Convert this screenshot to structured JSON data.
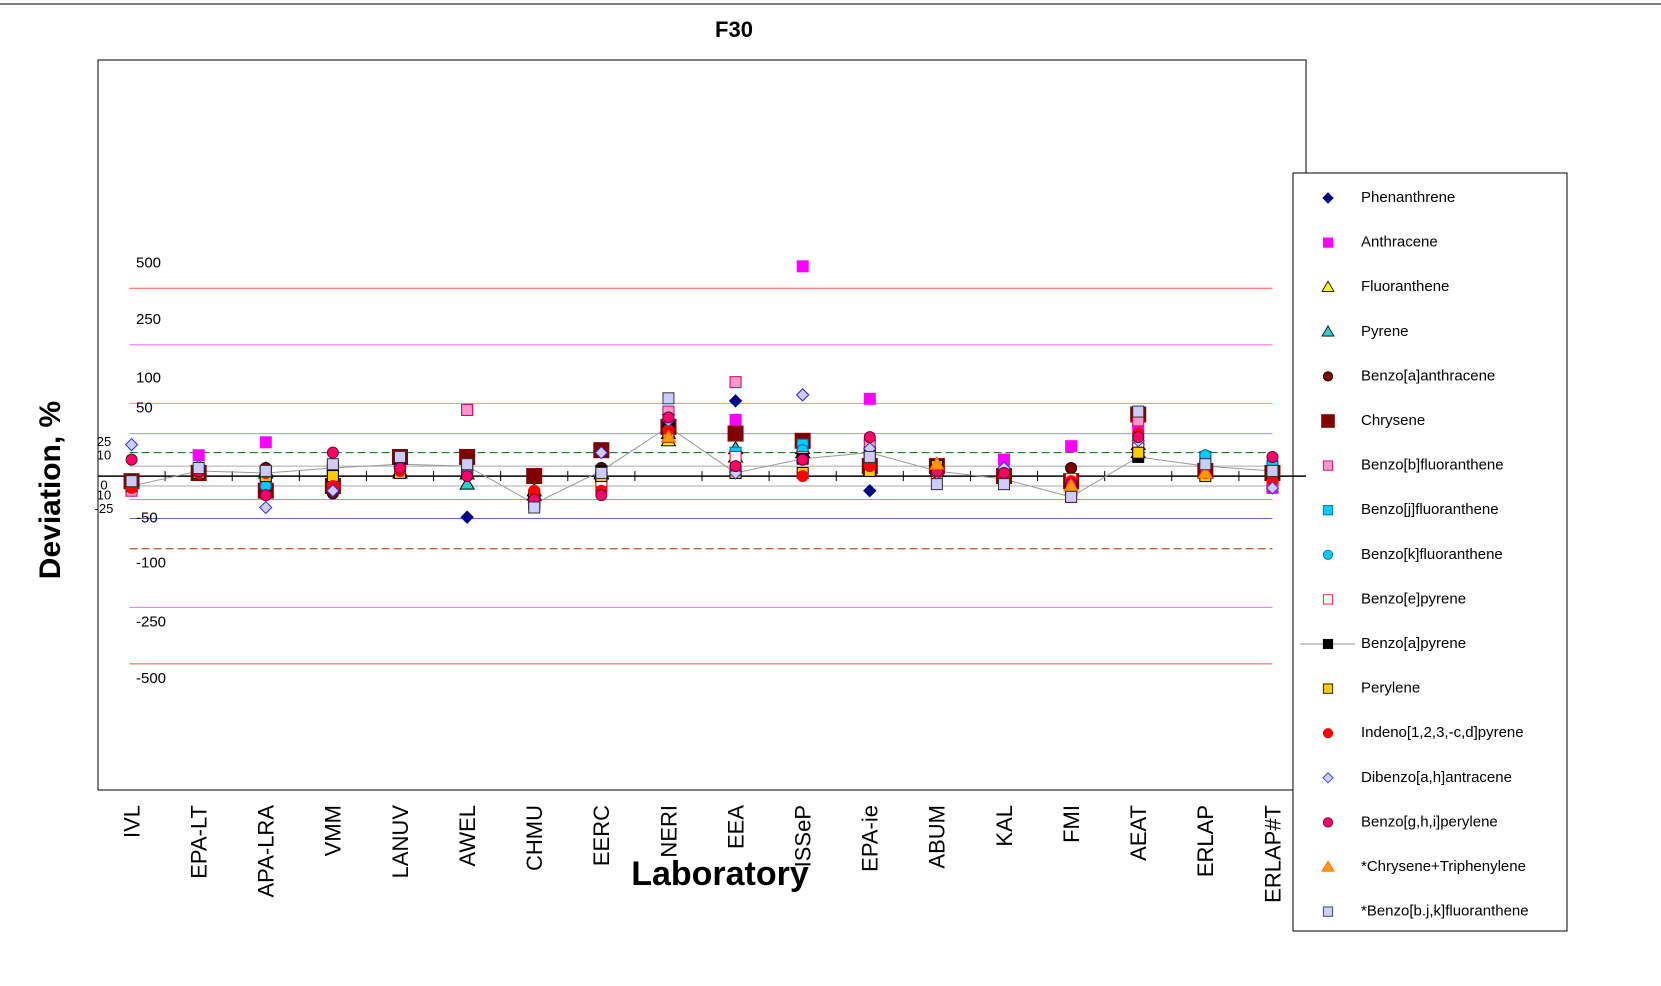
{
  "chart_data": {
    "type": "scatter",
    "title": "F30",
    "xlabel": "Laboratory",
    "ylabel": "Deviation, %",
    "yscale": "signed-log-ratio",
    "categories": [
      "IVL",
      "EPA-LT",
      "APA-LRA",
      "VMM",
      "LANUV",
      "AWEL",
      "CHMU",
      "EERC",
      "NERI",
      "EEA",
      "ISSeP",
      "EPA-ie",
      "ABUM",
      "KAL",
      "FMI",
      "AEAT",
      "ERLAP",
      "ERLAP#T"
    ],
    "ylim": [
      -1900,
      5200
    ],
    "yticks": [
      500,
      250,
      100,
      50,
      25,
      10,
      0,
      {
        "value": -10,
        "label": "10"
      },
      -25,
      -50,
      -100,
      -250,
      -500
    ],
    "grid_colors": [
      "#ff5050",
      "#ff66ff",
      "#ff9933",
      "#9999ff",
      "#006600",
      "#aaaaaa",
      "#000000",
      "#aaaaaa",
      "#66cc66",
      "#6666cc",
      "#993300",
      "#ff66ff",
      "#ff5050"
    ],
    "grid_dashed": [
      false,
      false,
      false,
      false,
      true,
      false,
      false,
      false,
      false,
      false,
      true,
      false,
      false
    ],
    "legend": "right",
    "series": [
      {
        "name": "Phenanthrene",
        "marker": "diamond",
        "color": "#000080",
        "edge": "#000080",
        "values": [
          -10,
          5,
          8,
          -12,
          8,
          -48,
          -22,
          3,
          80,
          105,
          117,
          -15,
          5,
          5,
          -10,
          35,
          3,
          3
        ]
      },
      {
        "name": "Anthracene",
        "marker": "square",
        "color": "#ff00ff",
        "edge": "#ff00ff",
        "values": [
          -12,
          22,
          38,
          null,
          null,
          88,
          null,
          null,
          null,
          71,
          640,
          109,
          null,
          17,
          33,
          55,
          null,
          -12
        ]
      },
      {
        "name": "Fluoranthene",
        "marker": "triangle",
        "color": "#ffff00",
        "edge": "#000000",
        "values": [
          -5,
          3,
          5,
          0,
          3,
          2,
          -20,
          2,
          40,
          20,
          30,
          5,
          10,
          3,
          -3,
          25,
          3,
          5
        ]
      },
      {
        "name": "Pyrene",
        "marker": "triangle",
        "color": "#33cccc",
        "edge": "#000000",
        "values": [
          -5,
          5,
          3,
          -10,
          5,
          -8,
          -15,
          3,
          50,
          30,
          25,
          5,
          5,
          3,
          -5,
          35,
          3,
          8
        ]
      },
      {
        "name": "Benzo[a]anthracene",
        "marker": "circle",
        "color": "#800000",
        "edge": "#000000",
        "values": [
          -10,
          5,
          8,
          -18,
          8,
          3,
          -18,
          8,
          70,
          8,
          18,
          40,
          8,
          3,
          8,
          45,
          5,
          3
        ]
      },
      {
        "name": "Chrysene",
        "marker": "bigsquare",
        "color": "#800000",
        "edge": "#800000",
        "values": [
          -5,
          3,
          -15,
          -10,
          20,
          20,
          0,
          28,
          60,
          50,
          40,
          10,
          10,
          0,
          -5,
          80,
          5,
          3
        ]
      },
      {
        "name": "Benzo[b]fluoranthene",
        "marker": "square",
        "color": "#ff99cc",
        "edge": "#cc0066",
        "values": [
          -15,
          3,
          -5,
          -10,
          3,
          88,
          -30,
          -10,
          85,
          145,
          30,
          35,
          3,
          0,
          -20,
          70,
          3,
          -10
        ]
      },
      {
        "name": "Benzo[j]fluoranthene",
        "marker": "square",
        "color": "#00ccff",
        "edge": "#006699",
        "values": [
          -8,
          5,
          0,
          5,
          20,
          10,
          -25,
          0,
          60,
          25,
          35,
          20,
          3,
          0,
          -10,
          40,
          20,
          10
        ]
      },
      {
        "name": "Benzo[k]fluoranthene",
        "marker": "circle",
        "color": "#00ccff",
        "edge": "#006699",
        "values": [
          -10,
          3,
          -10,
          8,
          8,
          3,
          -25,
          3,
          70,
          10,
          28,
          15,
          3,
          3,
          -8,
          50,
          22,
          12
        ]
      },
      {
        "name": "Benzo[e]pyrene",
        "marker": "square",
        "color": "#ffffff",
        "edge": "#ff0000",
        "values": [
          -8,
          3,
          5,
          5,
          5,
          5,
          -22,
          -5,
          55,
          20,
          20,
          5,
          3,
          2,
          -3,
          30,
          3,
          5
        ]
      },
      {
        "name": "Benzo[a]pyrene",
        "marker": "square",
        "color": "#000000",
        "edge": "#000000",
        "line": "#999999",
        "values": [
          -10,
          5,
          3,
          8,
          12,
          10,
          -30,
          5,
          60,
          3,
          18,
          25,
          5,
          -3,
          -22,
          20,
          10,
          5
        ]
      },
      {
        "name": "Perylene",
        "marker": "square",
        "color": "#ffcc00",
        "edge": "#000000",
        "values": [
          -8,
          3,
          0,
          0,
          3,
          3,
          -20,
          0,
          45,
          3,
          3,
          5,
          10,
          0,
          -12,
          25,
          0,
          0
        ]
      },
      {
        "name": "Indeno[1,2,3,-c,d]pyrene",
        "marker": "circle",
        "color": "#ff0000",
        "edge": "#ff0000",
        "values": [
          -12,
          3,
          3,
          -10,
          5,
          5,
          -15,
          -15,
          55,
          8,
          0,
          10,
          3,
          0,
          -5,
          50,
          3,
          -5
        ]
      },
      {
        "name": "Dibenzo[a,h]antracene",
        "marker": "diamond",
        "color": "#ccccff",
        "edge": "#3333cc",
        "values": [
          35,
          10,
          -35,
          -15,
          10,
          3,
          -30,
          25,
          70,
          3,
          117,
          30,
          3,
          8,
          -20,
          40,
          10,
          -12
        ]
      },
      {
        "name": "Benzo[g,h,i]perylene",
        "marker": "circle",
        "color": "#ff0066",
        "edge": "#660033",
        "values": [
          17,
          5,
          -20,
          25,
          8,
          0,
          -25,
          -20,
          75,
          10,
          17,
          45,
          5,
          3,
          -8,
          45,
          5,
          20
        ]
      },
      {
        "name": "*Chrysene+Triphenylene",
        "marker": "triangle",
        "color": "#ff9900",
        "edge": "#ff6600",
        "values": [
          null,
          null,
          null,
          null,
          null,
          null,
          null,
          null,
          45,
          null,
          null,
          null,
          12,
          null,
          -10,
          null,
          3,
          null
        ]
      },
      {
        "name": "*Benzo[b.j,k]fluoranthene",
        "marker": "square",
        "color": "#ccccff",
        "edge": "#333333",
        "values": [
          -5,
          8,
          5,
          12,
          20,
          12,
          -35,
          3,
          110,
          null,
          null,
          20,
          -8,
          -8,
          -22,
          85,
          12,
          5
        ]
      }
    ]
  }
}
